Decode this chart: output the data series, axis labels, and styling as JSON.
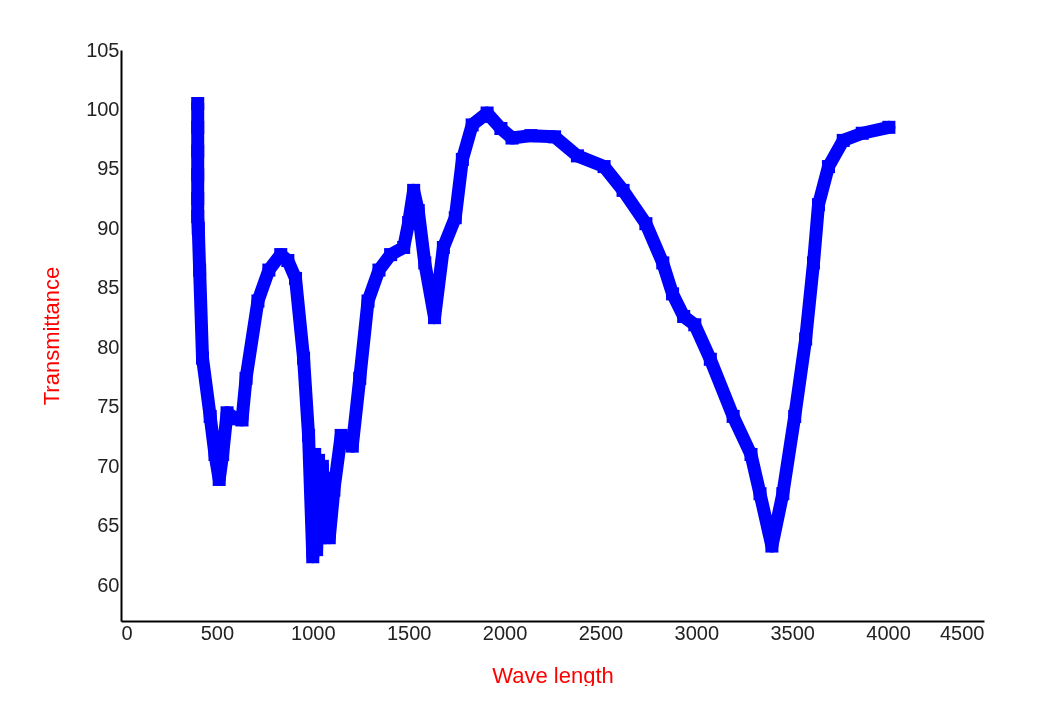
{
  "chart_data": {
    "type": "line",
    "xlabel": "Wave length",
    "ylabel": "Transmittance",
    "x": [
      400,
      400,
      400,
      400,
      400,
      400,
      403,
      410,
      425,
      465,
      490,
      512,
      530,
      553,
      600,
      631,
      652,
      714,
      771,
      833,
      870,
      910,
      952,
      978,
      1000,
      1010,
      1020,
      1030,
      1040,
      1050,
      1060,
      1070,
      1086,
      1110,
      1148,
      1206,
      1245,
      1288,
      1345,
      1406,
      1474,
      1500,
      1526,
      1550,
      1584,
      1635,
      1681,
      1743,
      1780,
      1831,
      1909,
      1981,
      2039,
      2137,
      2261,
      2380,
      2519,
      2618,
      2737,
      2825,
      2876,
      2934,
      2992,
      3073,
      3192,
      3285,
      3332,
      3394,
      3451,
      3513,
      3570,
      3611,
      3637,
      3689,
      3766,
      3865,
      4004
    ],
    "series": [
      {
        "color": "#0000ff",
        "values": [
          100.5,
          98.5,
          96.5,
          94.5,
          92.5,
          91,
          90,
          86.5,
          79.1,
          74.2,
          71,
          68.9,
          71,
          74.5,
          74,
          73.9,
          77.4,
          83.9,
          86.5,
          87.8,
          87.3,
          85.8,
          79.1,
          72.6,
          62.4,
          71,
          63,
          70.5,
          64,
          70,
          64.5,
          69,
          64,
          68,
          72.6,
          71.7,
          77.4,
          83.9,
          86.5,
          87.8,
          88.4,
          90.5,
          93.2,
          91.5,
          87.1,
          82.5,
          88.4,
          90.9,
          95.8,
          98.7,
          99.7,
          98.4,
          97.6,
          97.8,
          97.7,
          96.1,
          95.2,
          93.2,
          90.4,
          87.1,
          84.5,
          82.6,
          81.9,
          79,
          74.2,
          71,
          67.7,
          63.3,
          67.7,
          74.2,
          80.7,
          87.1,
          92,
          95.2,
          97.4,
          98,
          98.5
        ]
      }
    ],
    "xlim": [
      0,
      4500
    ],
    "xticks": [
      0,
      500,
      1000,
      1500,
      2000,
      2500,
      3000,
      3500,
      4000,
      4500
    ],
    "ylim": [
      57,
      105
    ],
    "yticks": [
      60,
      65,
      70,
      75,
      80,
      85,
      90,
      95,
      100,
      105
    ],
    "grid": false,
    "marker": "square",
    "line_style": "solid"
  }
}
